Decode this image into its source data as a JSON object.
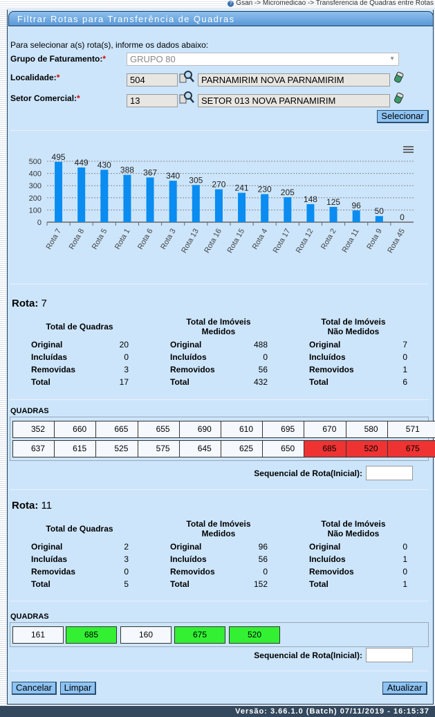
{
  "breadcrumb": "Gsan -> Micromedicao -> Transferencia de Quadras entre Rotas",
  "title": "Filtrar Rotas para Transferência de Quadras",
  "form": {
    "intro": "Para selecionar a(s) rota(s), informe os dados abaixo:",
    "grupo_label": "Grupo de Faturamento:",
    "grupo_value": "GRUPO 80",
    "localidade_label": "Localidade:",
    "localidade_code": "504",
    "localidade_name": "PARNAMIRIM NOVA PARNAMIRIM",
    "setor_label": "Setor Comercial:",
    "setor_code": "13",
    "setor_name": "SETOR 013 NOVA PARNAMIRIM",
    "required": "*",
    "select_button": "Selecionar"
  },
  "chart_data": {
    "type": "bar",
    "categories": [
      "Rota 7",
      "Rota 8",
      "Rota 5",
      "Rota 1",
      "Rota 6",
      "Rota 3",
      "Rota 13",
      "Rota 16",
      "Rota 15",
      "Rota 4",
      "Rota 17",
      "Rota 12",
      "Rota 2",
      "Rota 11",
      "Rota 9",
      "Rota 45"
    ],
    "values": [
      495,
      449,
      430,
      388,
      367,
      340,
      305,
      270,
      241,
      230,
      205,
      148,
      125,
      96,
      50,
      0
    ],
    "yticks": [
      0,
      100,
      200,
      300,
      400,
      500
    ],
    "ylim": [
      0,
      500
    ],
    "grid": true,
    "color": "#0a8cf0"
  },
  "rotas": [
    {
      "label": "Rota:",
      "num": "7",
      "h1": "Total de Quadras",
      "h2a": "Total de Imóveis",
      "h2b": "Medidos",
      "h3a": "Total de Imóveis",
      "h3b": "Não Medidos",
      "c1": [
        [
          "Original",
          "20"
        ],
        [
          "Incluídas",
          "0"
        ],
        [
          "Removidas",
          "3"
        ],
        [
          "Total",
          "17"
        ]
      ],
      "c2": [
        [
          "Original",
          "488"
        ],
        [
          "Incluídos",
          "0"
        ],
        [
          "Removidos",
          "56"
        ],
        [
          "Total",
          "432"
        ]
      ],
      "c3": [
        [
          "Original",
          "7"
        ],
        [
          "Incluídos",
          "0"
        ],
        [
          "Removidos",
          "1"
        ],
        [
          "Total",
          "6"
        ]
      ],
      "quadras_label": "QUADRAS",
      "quadras": [
        [
          "352",
          "n"
        ],
        [
          "660",
          "n"
        ],
        [
          "665",
          "n"
        ],
        [
          "655",
          "n"
        ],
        [
          "690",
          "n"
        ],
        [
          "610",
          "n"
        ],
        [
          "695",
          "n"
        ],
        [
          "670",
          "n"
        ],
        [
          "580",
          "n"
        ],
        [
          "571",
          "n"
        ],
        [
          "637",
          "n"
        ],
        [
          "615",
          "n"
        ],
        [
          "525",
          "n"
        ],
        [
          "575",
          "n"
        ],
        [
          "645",
          "n"
        ],
        [
          "625",
          "n"
        ],
        [
          "650",
          "n"
        ],
        [
          "685",
          "removed"
        ],
        [
          "520",
          "removed"
        ],
        [
          "675",
          "removed"
        ]
      ],
      "seq_label": "Sequencial de Rota(Inicial):",
      "seq_value": ""
    },
    {
      "label": "Rota:",
      "num": "11",
      "h1": "Total de Quadras",
      "h2a": "Total de Imóveis",
      "h2b": "Medidos",
      "h3a": "Total de Imóveis",
      "h3b": "Não Medidos",
      "c1": [
        [
          "Original",
          "2"
        ],
        [
          "Incluídas",
          "3"
        ],
        [
          "Removidas",
          "0"
        ],
        [
          "Total",
          "5"
        ]
      ],
      "c2": [
        [
          "Original",
          "96"
        ],
        [
          "Incluídos",
          "56"
        ],
        [
          "Removidos",
          "0"
        ],
        [
          "Total",
          "152"
        ]
      ],
      "c3": [
        [
          "Original",
          "0"
        ],
        [
          "Incluídos",
          "1"
        ],
        [
          "Removidos",
          "0"
        ],
        [
          "Total",
          "1"
        ]
      ],
      "quadras_label": "QUADRAS",
      "quadras": [
        [
          "161",
          "n"
        ],
        [
          "685",
          "added"
        ],
        [
          "160",
          "n"
        ],
        [
          "675",
          "added"
        ],
        [
          "520",
          "added"
        ]
      ],
      "seq_label": "Sequencial de Rota(Inicial):",
      "seq_value": ""
    }
  ],
  "colors": {
    "removed": "#ef3333",
    "added": "#33f033",
    "panel": "#cce5fb"
  },
  "buttons": {
    "cancel": "Cancelar",
    "clear": "Limpar",
    "update": "Atualizar"
  },
  "footer": "Versão: 3.66.1.0 (Batch) 07/11/2019 - 16:15:37"
}
